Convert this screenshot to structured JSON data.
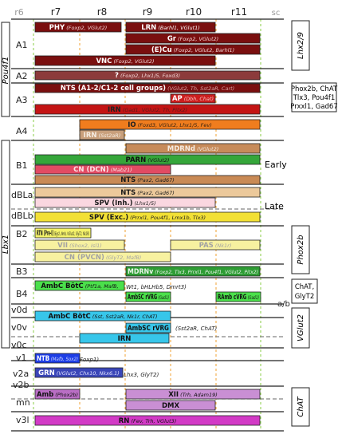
{
  "columns": [
    "r6",
    "r7",
    "r8",
    "r9",
    "r10",
    "r11",
    "sc"
  ],
  "column_colors": [
    "#aaaaaa",
    "#222222",
    "#222222",
    "#222222",
    "#222222",
    "#222222",
    "#aaaaaa"
  ],
  "rows": [
    {
      "label": "A1",
      "id": "a1"
    },
    {
      "label": "A2",
      "id": "a2"
    },
    {
      "label": "A3",
      "id": "a3"
    },
    {
      "label": "A4",
      "id": "a4"
    },
    {
      "label": "B1",
      "id": "b1"
    },
    {
      "label": "dBLa",
      "id": "dbla"
    },
    {
      "label": "dBLb",
      "id": "dblb"
    },
    {
      "label": "B2",
      "id": "b2"
    },
    {
      "label": "B3",
      "id": "b3"
    },
    {
      "label": "B4",
      "id": "b4"
    },
    {
      "label": "v0d",
      "id": "v0d"
    },
    {
      "label": "v0v",
      "id": "v0v"
    },
    {
      "label": "v0c",
      "id": "v0c"
    },
    {
      "label": "v1",
      "id": "v1"
    },
    {
      "label": "v2a",
      "id": "v2a"
    },
    {
      "label": "v2b",
      "id": "v2b"
    },
    {
      "label": "mn",
      "id": "mn"
    },
    {
      "label": "v3l",
      "id": "v3l"
    }
  ],
  "boxes": [
    {
      "name": "PHY",
      "genes": "(Foxp2, VGlut2)",
      "fill": "#7a0f0f",
      "text": "#ffffff",
      "gene_color": "#f4d6d6"
    },
    {
      "name": "LRN",
      "genes": "(Barhl1, VGlut1)",
      "fill": "#7a0f0f",
      "text": "#ffffff",
      "gene_color": "#ffffff"
    },
    {
      "name": "Gr",
      "genes": "(Foxp2, VGlut2)",
      "fill": "#7a0f0f",
      "text": "#ffffff",
      "gene_color": "#f4d6d6"
    },
    {
      "name": "(E)Cu",
      "genes": "(Foxp2, VGlut2, Barhl1)",
      "fill": "#7a0f0f",
      "text": "#ffffff",
      "gene_color": "#f4d6d6"
    },
    {
      "name": "VNC",
      "genes": "(Foxp2, VGlut2)",
      "fill": "#7a0f0f",
      "text": "#ffffff",
      "gene_color": "#f4d6d6"
    },
    {
      "name": "?",
      "genes": "(Foxp2, Lhx1/5, Foxd3)",
      "fill": "#8c3b3b",
      "text": "#ffffff",
      "gene_color": "#f4d6d6"
    },
    {
      "name": "NTS (A1-2/C1-2 cell groups)",
      "genes": "(VGlut2, Th, Sst2aR, Cart)",
      "fill": "#7a0f0f",
      "text": "#ffffff",
      "gene_color": "#d7a3a3"
    },
    {
      "name": "AP",
      "genes": "(Dbh, Chat)",
      "fill": "#cc1e1e",
      "text": "#ffffff",
      "gene_color": "#f7c3c3"
    },
    {
      "name": "IRN",
      "genes": "(Gad1, VGlut2, Th, Pitx2)",
      "fill": "#c41414",
      "text": "#222222",
      "gene_color": "#5a1a1a"
    },
    {
      "name": "IO",
      "genes": "(Foxd3, VGlut2, Lhx1/5, Fev)",
      "fill": "#f07d1e",
      "text": "#222222",
      "gene_color": "#3a2412"
    },
    {
      "name": "IRN",
      "genes": "(Sst2aR)",
      "fill": "#c9a07c",
      "text": "#f5ece2",
      "gene_color": "#f5ece2"
    },
    {
      "name": "MDRNd",
      "genes": "(VGlut2)",
      "fill": "#c78b5a",
      "text": "#f5ece2",
      "gene_color": "#f5ece2"
    },
    {
      "name": "PARN",
      "genes": "(VGlut2)",
      "fill": "#35a63a",
      "text": "#111111",
      "gene_color": "#111111"
    },
    {
      "name": "CN (DCN)",
      "genes": "(Mab21)",
      "fill": "#e24b63",
      "text": "#fbe3e7",
      "gene_color": "#fbe3e7"
    },
    {
      "name": "NTS",
      "genes": "(Pax2, Gad67)",
      "fill": "#c98a55",
      "text": "#1a1a1a",
      "gene_color": "#1a1a1a"
    },
    {
      "name": "NTS",
      "genes": "(Pax2, Gad67)",
      "fill": "#ecc99b",
      "text": "#1a1a1a",
      "gene_color": "#1a1a1a"
    },
    {
      "name": "SPV (Inh.)",
      "genes": "(Lhx1/5)",
      "fill": "#fad7e0",
      "text": "#1a1a1a",
      "gene_color": "#1a1a1a"
    },
    {
      "name": "SPV (Exc.)",
      "genes": "(Prrxl1, Pou4f1, Lmx1b, Tlx3)",
      "fill": "#f2e035",
      "text": "#1a1a1a",
      "gene_color": "#1a1a1a"
    },
    {
      "name": "RTN (Pre-I)",
      "genes": "(Egr2, Nmb, VGlut2, GlyT2, Nk1R)",
      "fill": "#f5f36a",
      "text": "#1a1a1a",
      "gene_color": "#1a1a1a"
    },
    {
      "name": "VII",
      "genes": "(Shox2, Isl1)",
      "fill": "#f7f1a0",
      "text": "#a3a3a3",
      "gene_color": "#a3a3a3"
    },
    {
      "name": "PAS",
      "genes": "(Nk1r)",
      "fill": "#f7f1a0",
      "text": "#a3a3a3",
      "gene_color": "#a3a3a3"
    },
    {
      "name": "CN (PVCN)",
      "genes": "(GlyT2, MafB)",
      "fill": "#f7f1a0",
      "text": "#a3a3a3",
      "gene_color": "#a3a3a3"
    },
    {
      "name": "MDRNv",
      "genes": "(Foxp2, Tlx3, Prrxl1, Pou4f1, VGlut2, Pitx2)",
      "fill": "#2e9c34",
      "text": "#e9f6ea",
      "gene_color": "#e9f6ea"
    },
    {
      "name": "AmbC BötC",
      "genes": "(Ptf1a, MafB,",
      "fill": "#4be04b",
      "text": "#111111",
      "gene_color": "#111111"
    },
    {
      "name": "AmbSC rVRG",
      "genes": "(Gad1)",
      "fill": "#4be04b",
      "text": "#111111",
      "gene_color": "#111111"
    },
    {
      "name": "RAmb cVRG",
      "genes": "(Gad1)",
      "fill": "#4be04b",
      "text": "#111111",
      "gene_color": "#111111"
    },
    {
      "name": "AmbC BötC",
      "genes": "(Sst, Sst2aR, Nk1r, ChAT)",
      "fill": "#37c6ea",
      "text": "#111111",
      "gene_color": "#111111"
    },
    {
      "name": "AmbSC rVRG",
      "genes": "",
      "fill": "#37c6ea",
      "text": "#111111",
      "gene_color": "#111111"
    },
    {
      "name": "IRN",
      "genes": "",
      "fill": "#37c6ea",
      "text": "#111111",
      "gene_color": "#111111"
    },
    {
      "name": "NTB",
      "genes": "(Mafb, Sox2)",
      "fill": "#1e3ee6",
      "text": "#ffffff",
      "gene_color": "#cfd7ff"
    },
    {
      "name": "GRN",
      "genes": "(VGlut2, Chx10, Nkx6.1)",
      "fill": "#3a46b8",
      "text": "#ffffff",
      "gene_color": "#e0e3ff"
    },
    {
      "name": "Amb",
      "genes": "(Phox2b)",
      "fill": "#b96ec4",
      "text": "#111111",
      "gene_color": "#111111"
    },
    {
      "name": "XII",
      "genes": "(Trh, Adam19)",
      "fill": "#c98fd4",
      "text": "#111111",
      "gene_color": "#111111"
    },
    {
      "name": "DMX",
      "genes": "",
      "fill": "#c98fd4",
      "text": "#111111",
      "gene_color": "#111111"
    },
    {
      "name": "RN",
      "genes": "(Fev, Trh, VGlut3)",
      "fill": "#d23ac6",
      "text": "#111111",
      "gene_color": "#111111"
    }
  ],
  "outside_notes": [
    {
      "text": "Wt1, bHLHb5, Dmrt3)",
      "id": "b4-extra"
    },
    {
      "text": "(Sst2aR, ChAT)",
      "id": "v0v-extra"
    },
    {
      "text": "Foxp1)",
      "id": "v1-extra"
    },
    {
      "text": "Lhx3, GlyT2)",
      "id": "v2a-extra"
    },
    {
      "text": "a/b",
      "id": "ab-note"
    }
  ],
  "side_labels": {
    "pou4f1": "Pou4f1",
    "lbx1": "Lbx1",
    "lhx29": "Lhx2/9",
    "phox": [
      "Phox2b, ChAT",
      "Tlx3, Pou4f1",
      "Prxxl1, Gad67"
    ],
    "early": "Early",
    "late": "Late",
    "phox2b": "Phox2b",
    "chat_glyt2": [
      "ChAT,",
      "GlyT2"
    ],
    "vglut2": "VGlut2",
    "chat": "ChAT"
  }
}
